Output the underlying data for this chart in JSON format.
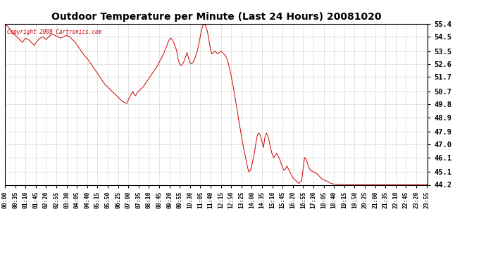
{
  "title": "Outdoor Temperature per Minute (Last 24 Hours) 20081020",
  "copyright_text": "Copyright 2008 Cartronics.com",
  "line_color": "#CC0000",
  "background_color": "#ffffff",
  "grid_color": "#bbbbbb",
  "yticks": [
    44.2,
    45.1,
    46.1,
    47.0,
    47.9,
    48.9,
    49.8,
    50.7,
    51.7,
    52.6,
    53.5,
    54.5,
    55.4
  ],
  "ymin": 44.2,
  "ymax": 55.4,
  "xtick_labels": [
    "00:00",
    "00:35",
    "01:10",
    "01:45",
    "02:20",
    "02:55",
    "03:30",
    "04:05",
    "04:40",
    "05:15",
    "05:50",
    "06:25",
    "07:00",
    "07:35",
    "08:10",
    "08:45",
    "09:20",
    "09:55",
    "10:30",
    "11:05",
    "11:40",
    "12:15",
    "12:50",
    "13:25",
    "14:00",
    "14:35",
    "15:10",
    "15:45",
    "16:20",
    "16:55",
    "17:30",
    "18:05",
    "18:40",
    "19:15",
    "19:50",
    "20:25",
    "21:00",
    "21:35",
    "22:10",
    "22:45",
    "23:20",
    "23:55"
  ],
  "control_points": [
    [
      0,
      55.2
    ],
    [
      5,
      55.3
    ],
    [
      15,
      55.1
    ],
    [
      25,
      54.8
    ],
    [
      35,
      54.6
    ],
    [
      50,
      54.3
    ],
    [
      60,
      54.1
    ],
    [
      70,
      54.4
    ],
    [
      80,
      54.3
    ],
    [
      90,
      54.1
    ],
    [
      100,
      53.9
    ],
    [
      110,
      54.2
    ],
    [
      120,
      54.4
    ],
    [
      130,
      54.5
    ],
    [
      140,
      54.3
    ],
    [
      150,
      54.5
    ],
    [
      160,
      54.7
    ],
    [
      170,
      54.6
    ],
    [
      180,
      54.5
    ],
    [
      190,
      54.4
    ],
    [
      200,
      54.5
    ],
    [
      210,
      54.6
    ],
    [
      220,
      54.5
    ],
    [
      230,
      54.3
    ],
    [
      240,
      54.1
    ],
    [
      250,
      53.8
    ],
    [
      260,
      53.5
    ],
    [
      270,
      53.2
    ],
    [
      280,
      53.0
    ],
    [
      290,
      52.7
    ],
    [
      300,
      52.4
    ],
    [
      310,
      52.1
    ],
    [
      320,
      51.8
    ],
    [
      330,
      51.5
    ],
    [
      340,
      51.2
    ],
    [
      350,
      51.0
    ],
    [
      360,
      50.8
    ],
    [
      370,
      50.6
    ],
    [
      380,
      50.4
    ],
    [
      390,
      50.2
    ],
    [
      400,
      50.0
    ],
    [
      410,
      49.9
    ],
    [
      415,
      49.85
    ],
    [
      420,
      50.1
    ],
    [
      425,
      50.3
    ],
    [
      430,
      50.5
    ],
    [
      435,
      50.7
    ],
    [
      440,
      50.5
    ],
    [
      445,
      50.4
    ],
    [
      450,
      50.6
    ],
    [
      460,
      50.8
    ],
    [
      470,
      51.0
    ],
    [
      480,
      51.3
    ],
    [
      490,
      51.6
    ],
    [
      500,
      51.9
    ],
    [
      510,
      52.2
    ],
    [
      520,
      52.5
    ],
    [
      530,
      52.9
    ],
    [
      540,
      53.3
    ],
    [
      550,
      53.8
    ],
    [
      555,
      54.1
    ],
    [
      560,
      54.3
    ],
    [
      565,
      54.4
    ],
    [
      570,
      54.3
    ],
    [
      575,
      54.1
    ],
    [
      580,
      53.8
    ],
    [
      585,
      53.5
    ],
    [
      590,
      52.9
    ],
    [
      595,
      52.6
    ],
    [
      600,
      52.5
    ],
    [
      605,
      52.6
    ],
    [
      610,
      52.8
    ],
    [
      615,
      53.1
    ],
    [
      620,
      53.4
    ],
    [
      625,
      53.0
    ],
    [
      630,
      52.7
    ],
    [
      635,
      52.6
    ],
    [
      640,
      52.7
    ],
    [
      645,
      52.9
    ],
    [
      650,
      53.2
    ],
    [
      655,
      53.5
    ],
    [
      660,
      54.0
    ],
    [
      665,
      54.5
    ],
    [
      670,
      55.0
    ],
    [
      675,
      55.35
    ],
    [
      680,
      55.35
    ],
    [
      685,
      55.2
    ],
    [
      690,
      54.8
    ],
    [
      695,
      54.2
    ],
    [
      700,
      53.6
    ],
    [
      705,
      53.3
    ],
    [
      710,
      53.4
    ],
    [
      715,
      53.5
    ],
    [
      720,
      53.4
    ],
    [
      725,
      53.3
    ],
    [
      730,
      53.4
    ],
    [
      735,
      53.5
    ],
    [
      740,
      53.4
    ],
    [
      745,
      53.3
    ],
    [
      750,
      53.2
    ],
    [
      755,
      53.0
    ],
    [
      760,
      52.7
    ],
    [
      765,
      52.3
    ],
    [
      770,
      51.8
    ],
    [
      775,
      51.3
    ],
    [
      780,
      50.7
    ],
    [
      785,
      50.1
    ],
    [
      790,
      49.5
    ],
    [
      795,
      48.8
    ],
    [
      800,
      48.2
    ],
    [
      805,
      47.6
    ],
    [
      810,
      47.0
    ],
    [
      815,
      46.5
    ],
    [
      820,
      46.0
    ],
    [
      825,
      45.5
    ],
    [
      830,
      45.1
    ],
    [
      835,
      45.2
    ],
    [
      840,
      45.5
    ],
    [
      845,
      46.0
    ],
    [
      850,
      46.5
    ],
    [
      855,
      47.2
    ],
    [
      860,
      47.7
    ],
    [
      865,
      47.8
    ],
    [
      870,
      47.6
    ],
    [
      875,
      47.2
    ],
    [
      880,
      46.8
    ],
    [
      885,
      47.5
    ],
    [
      890,
      47.8
    ],
    [
      895,
      47.6
    ],
    [
      900,
      47.2
    ],
    [
      905,
      46.7
    ],
    [
      910,
      46.3
    ],
    [
      915,
      46.1
    ],
    [
      920,
      46.2
    ],
    [
      925,
      46.4
    ],
    [
      930,
      46.2
    ],
    [
      935,
      46.0
    ],
    [
      940,
      45.7
    ],
    [
      945,
      45.4
    ],
    [
      950,
      45.2
    ],
    [
      955,
      45.3
    ],
    [
      960,
      45.5
    ],
    [
      965,
      45.3
    ],
    [
      970,
      45.1
    ],
    [
      975,
      44.9
    ],
    [
      980,
      44.7
    ],
    [
      985,
      44.6
    ],
    [
      990,
      44.5
    ],
    [
      995,
      44.4
    ],
    [
      1000,
      44.3
    ],
    [
      1010,
      44.5
    ],
    [
      1020,
      46.1
    ],
    [
      1025,
      46.0
    ],
    [
      1030,
      45.7
    ],
    [
      1035,
      45.4
    ],
    [
      1040,
      45.2
    ],
    [
      1050,
      45.1
    ],
    [
      1060,
      45.0
    ],
    [
      1070,
      44.8
    ],
    [
      1080,
      44.6
    ],
    [
      1090,
      44.5
    ],
    [
      1100,
      44.4
    ],
    [
      1110,
      44.3
    ],
    [
      1120,
      44.25
    ],
    [
      1130,
      44.22
    ],
    [
      1140,
      44.2
    ],
    [
      1150,
      44.22
    ],
    [
      1160,
      44.21
    ],
    [
      1170,
      44.2
    ],
    [
      1180,
      44.2
    ],
    [
      1200,
      44.2
    ],
    [
      1220,
      44.2
    ],
    [
      1240,
      44.2
    ],
    [
      1260,
      44.2
    ],
    [
      1280,
      44.2
    ],
    [
      1300,
      44.2
    ],
    [
      1320,
      44.2
    ],
    [
      1340,
      44.2
    ],
    [
      1360,
      44.2
    ],
    [
      1380,
      44.2
    ],
    [
      1400,
      44.2
    ],
    [
      1420,
      44.2
    ],
    [
      1439,
      44.2
    ]
  ]
}
